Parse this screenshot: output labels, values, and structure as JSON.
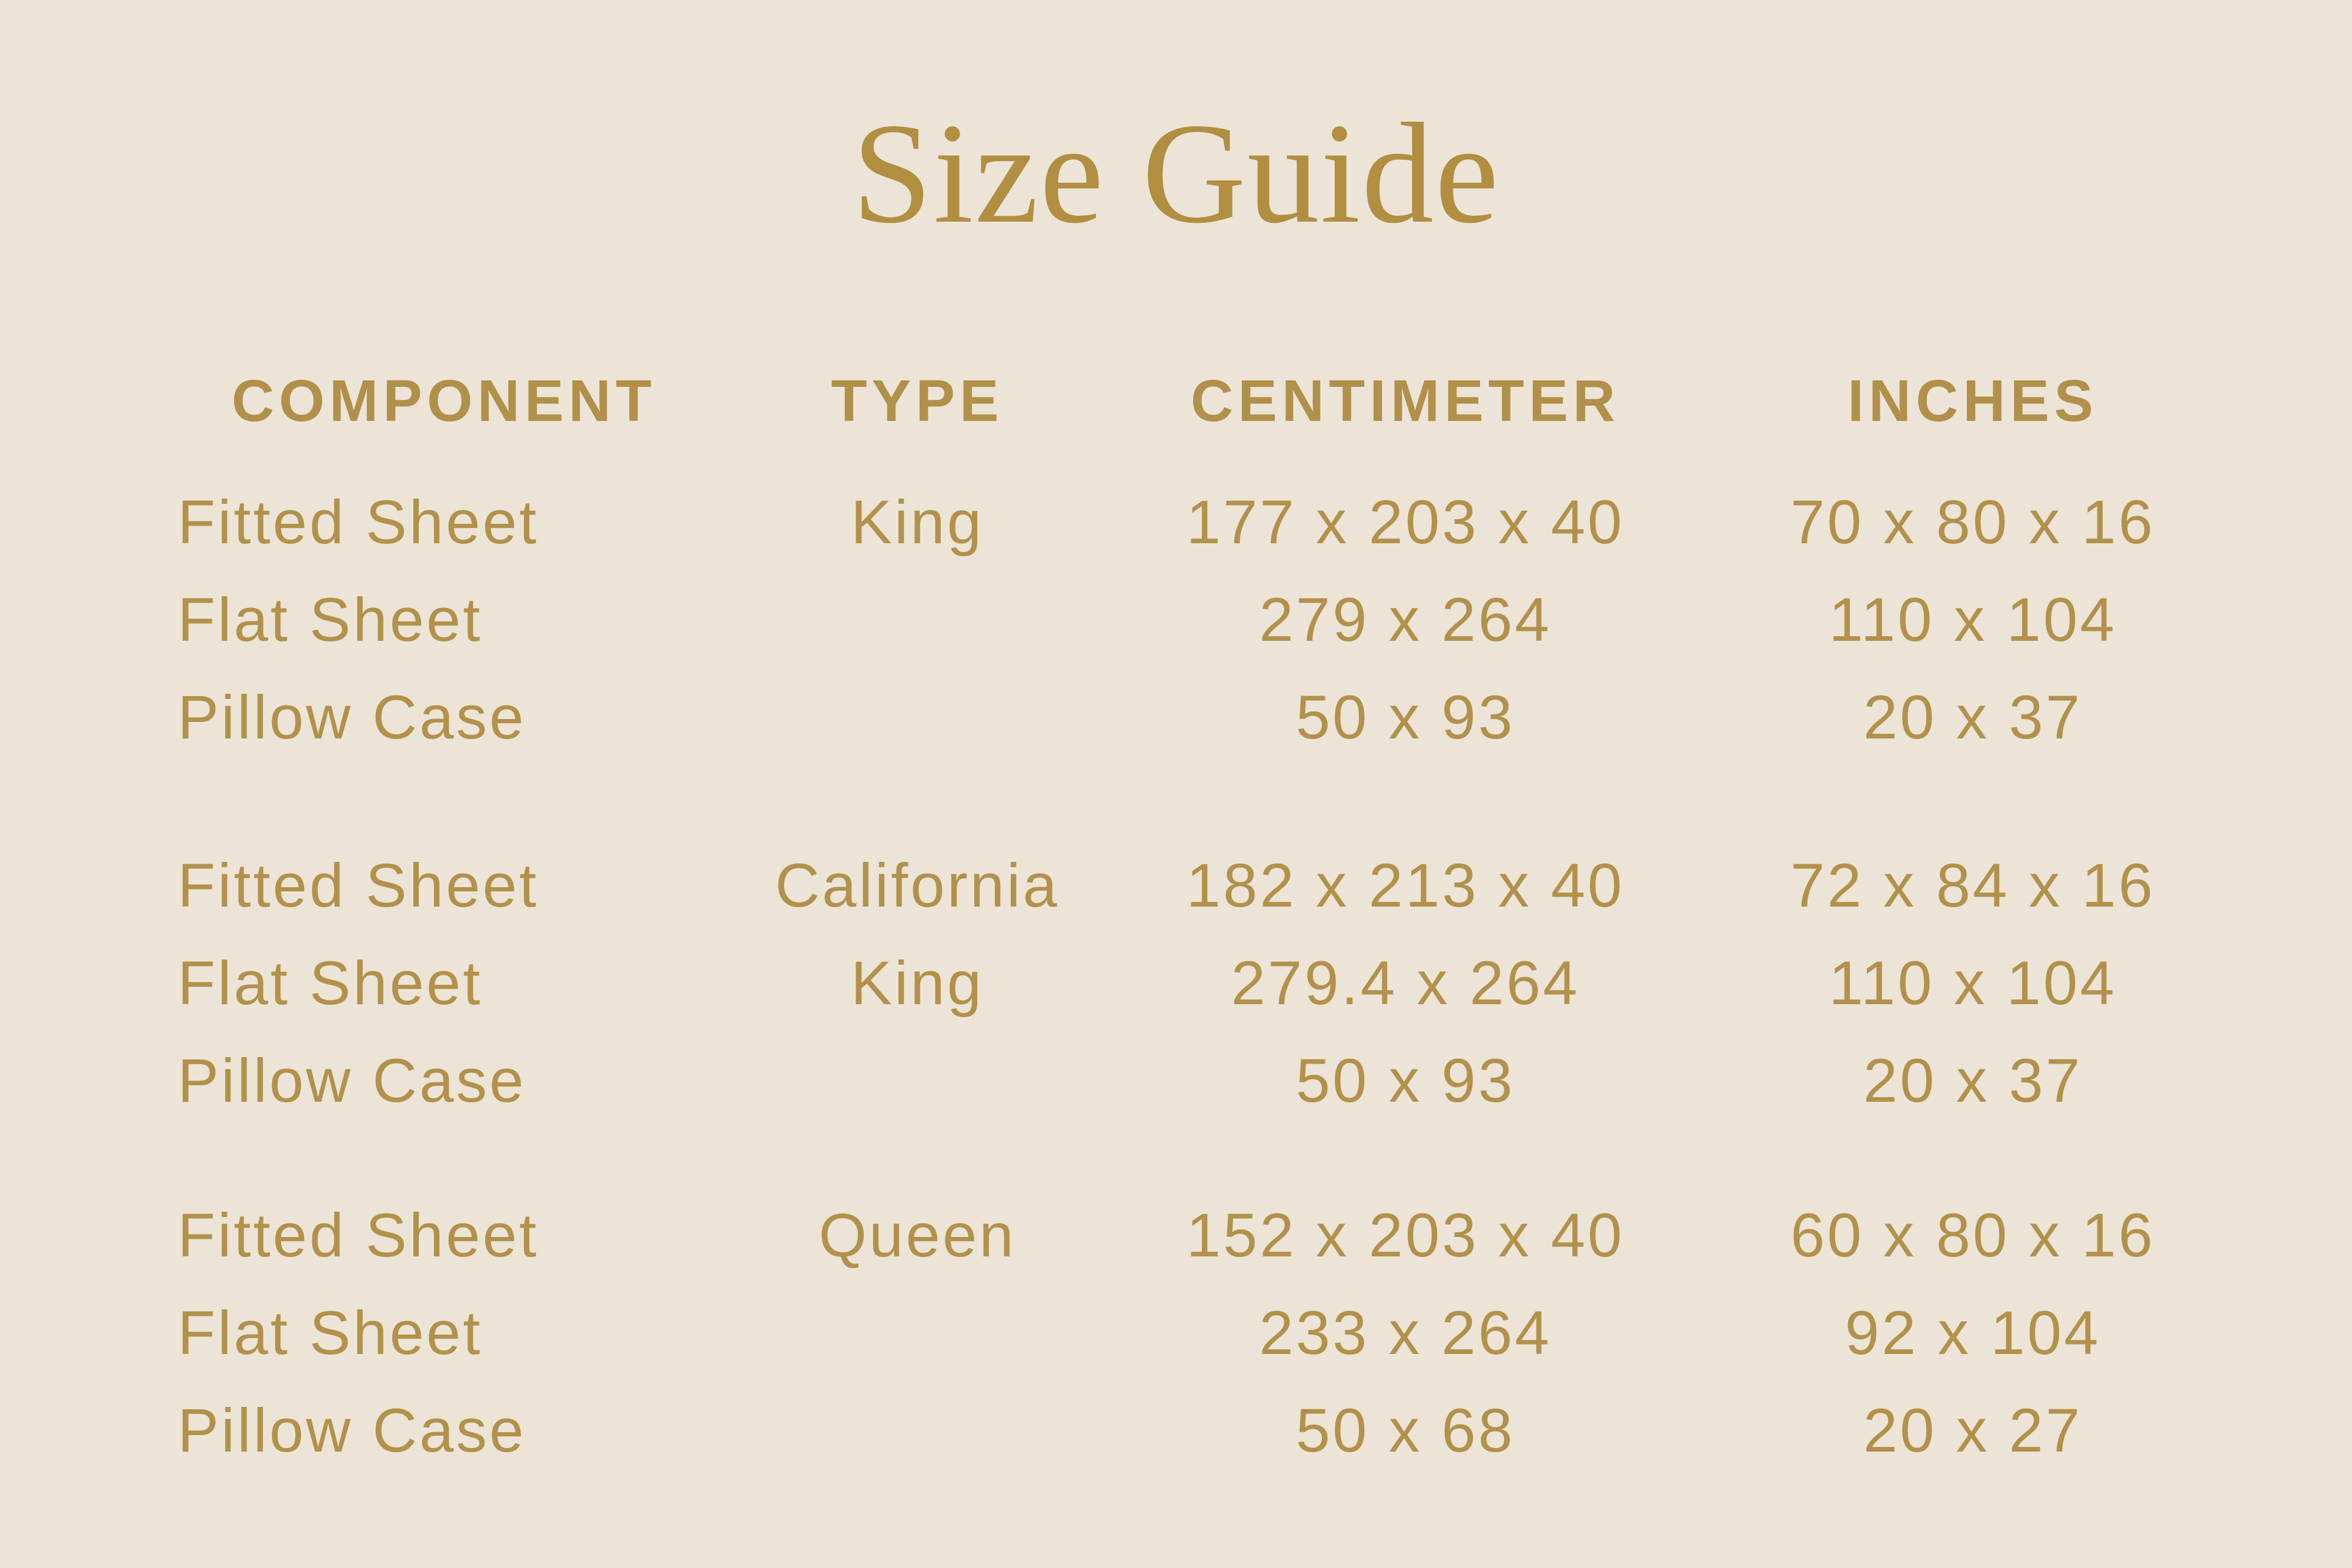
{
  "title": "Size Guide",
  "colors": {
    "background": "#ECE4D7",
    "table_text_gold": "#B2914B",
    "title_gold": "#B28E41"
  },
  "table": {
    "headers": {
      "component": "COMPONENT",
      "type": "TYPE",
      "centimeter": "CENTIMETER",
      "inches": "INCHES"
    },
    "groups": [
      {
        "type_label": "King",
        "rows": [
          {
            "component": "Fitted Sheet",
            "type": "King",
            "centimeter": "177 x 203 x 40",
            "inches": "70 x 80 x 16"
          },
          {
            "component": "Flat Sheet",
            "type": "",
            "centimeter": "279 x 264",
            "inches": "110 x 104"
          },
          {
            "component": "Pillow Case",
            "type": "",
            "centimeter": "50 x 93",
            "inches": "20 x 37"
          }
        ]
      },
      {
        "type_label": "California King",
        "rows": [
          {
            "component": "Fitted Sheet",
            "type": "California",
            "centimeter": "182 x 213 x 40",
            "inches": "72 x 84 x 16"
          },
          {
            "component": "Flat Sheet",
            "type": "King",
            "centimeter": "279.4 x 264",
            "inches": "110 x 104"
          },
          {
            "component": "Pillow Case",
            "type": "",
            "centimeter": "50 x 93",
            "inches": "20 x 37"
          }
        ]
      },
      {
        "type_label": "Queen",
        "rows": [
          {
            "component": "Fitted Sheet",
            "type": "Queen",
            "centimeter": "152 x 203 x 40",
            "inches": "60 x 80 x 16"
          },
          {
            "component": "Flat Sheet",
            "type": "",
            "centimeter": "233 x 264",
            "inches": "92 x 104"
          },
          {
            "component": "Pillow Case",
            "type": "",
            "centimeter": "50 x 68",
            "inches": "20 x 27"
          }
        ]
      }
    ]
  }
}
